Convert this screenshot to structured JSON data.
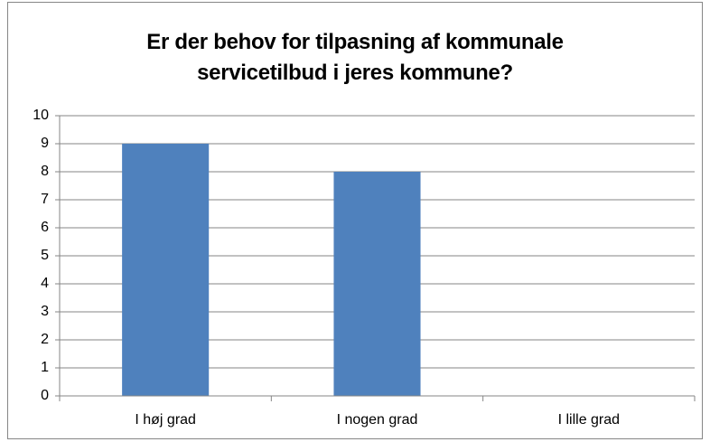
{
  "chart_data": {
    "type": "bar",
    "title": "Er der behov for tilpasning af kommunale servicetilbud i jeres kommune?",
    "categories": [
      "I høj grad",
      "I nogen grad",
      "I lille grad"
    ],
    "values": [
      9,
      8,
      0
    ],
    "color": "#4f81bd",
    "ylim": [
      0,
      10
    ],
    "yticks": [
      0,
      1,
      2,
      3,
      4,
      5,
      6,
      7,
      8,
      9,
      10
    ],
    "grid": true
  }
}
